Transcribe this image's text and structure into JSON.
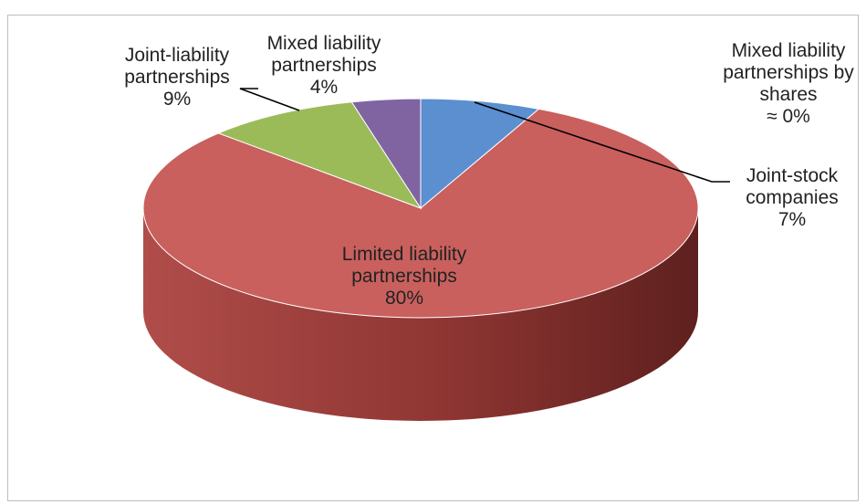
{
  "chart_data": {
    "type": "pie",
    "style": "3d",
    "slices": [
      {
        "label_lines": [
          "Joint-stock",
          "companies"
        ],
        "value_text": "7%",
        "value": 7,
        "color": "#5b8fd0"
      },
      {
        "label_lines": [
          "Limited liability",
          "partnerships"
        ],
        "value_text": "80%",
        "value": 80,
        "color": "#c9605d"
      },
      {
        "label_lines": [
          "Joint-liability",
          "partnerships"
        ],
        "value_text": "9%",
        "value": 9,
        "color": "#9bbb59"
      },
      {
        "label_lines": [
          "Mixed liability",
          "partnerships"
        ],
        "value_text": "4%",
        "value": 4,
        "color": "#8064a2"
      },
      {
        "label_lines": [
          "Mixed liability",
          "partnerships by",
          "shares"
        ],
        "value_text": "≈ 0%",
        "value": 0,
        "color": "#4bacc6"
      }
    ]
  }
}
